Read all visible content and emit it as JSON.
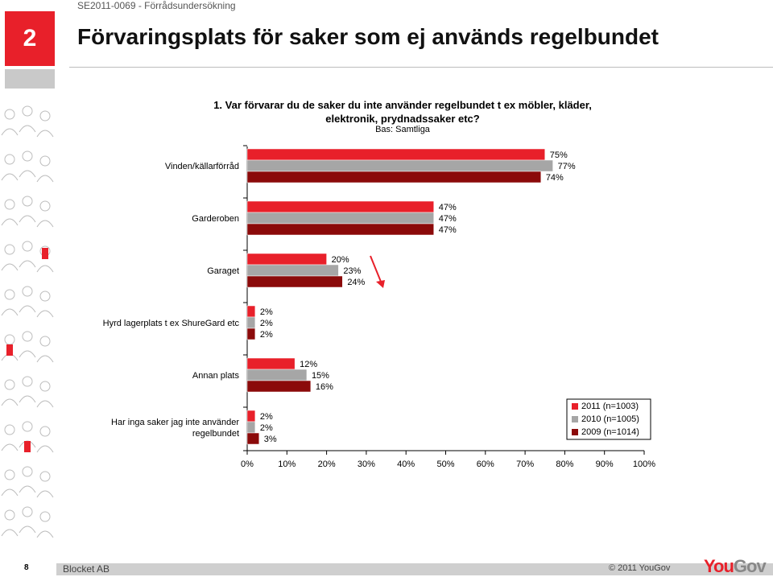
{
  "header": {
    "report_id": "SE2011-0069 - Förrådsundersökning",
    "slide_number": "2",
    "title": "Förvaringsplats för saker som ej används regelbundet"
  },
  "question": "1. Var förvarar du de saker du inte använder regelbundet t ex möbler, kläder, elektronik, prydnadssaker etc?",
  "base": "Bas: Samtliga",
  "colors": {
    "s2011": "#e8202a",
    "s2010": "#a6a6a6",
    "s2009": "#8b0a0a",
    "arrow": "#e8202a"
  },
  "chart_data": {
    "type": "bar",
    "orientation": "horizontal",
    "categories": [
      [
        "Vinden/källarförråd"
      ],
      [
        "Garderoben"
      ],
      [
        "Garaget"
      ],
      [
        "Hyrd lagerplats t ex ShureGard etc"
      ],
      [
        "Annan plats"
      ],
      [
        "Har inga saker jag inte använder",
        "regelbundet"
      ]
    ],
    "series": [
      {
        "name": "2011 (n=1003)",
        "values": [
          75,
          47,
          20,
          2,
          12,
          2
        ]
      },
      {
        "name": "2010 (n=1005)",
        "values": [
          77,
          47,
          23,
          2,
          15,
          2
        ]
      },
      {
        "name": "2009 (n=1014)",
        "values": [
          74,
          47,
          24,
          2,
          16,
          3
        ]
      }
    ],
    "xlim": [
      0,
      100
    ],
    "xticks": [
      "0%",
      "10%",
      "20%",
      "30%",
      "40%",
      "50%",
      "60%",
      "70%",
      "80%",
      "90%",
      "100%"
    ],
    "value_suffix": "%",
    "legend_position": "right",
    "annotation": "downward arrow next to Garaget"
  },
  "footer": {
    "page_number": "8",
    "company": "Blocket AB",
    "copyright": "© 2011 YouGov",
    "logo_you": "You",
    "logo_gov": "Gov"
  }
}
